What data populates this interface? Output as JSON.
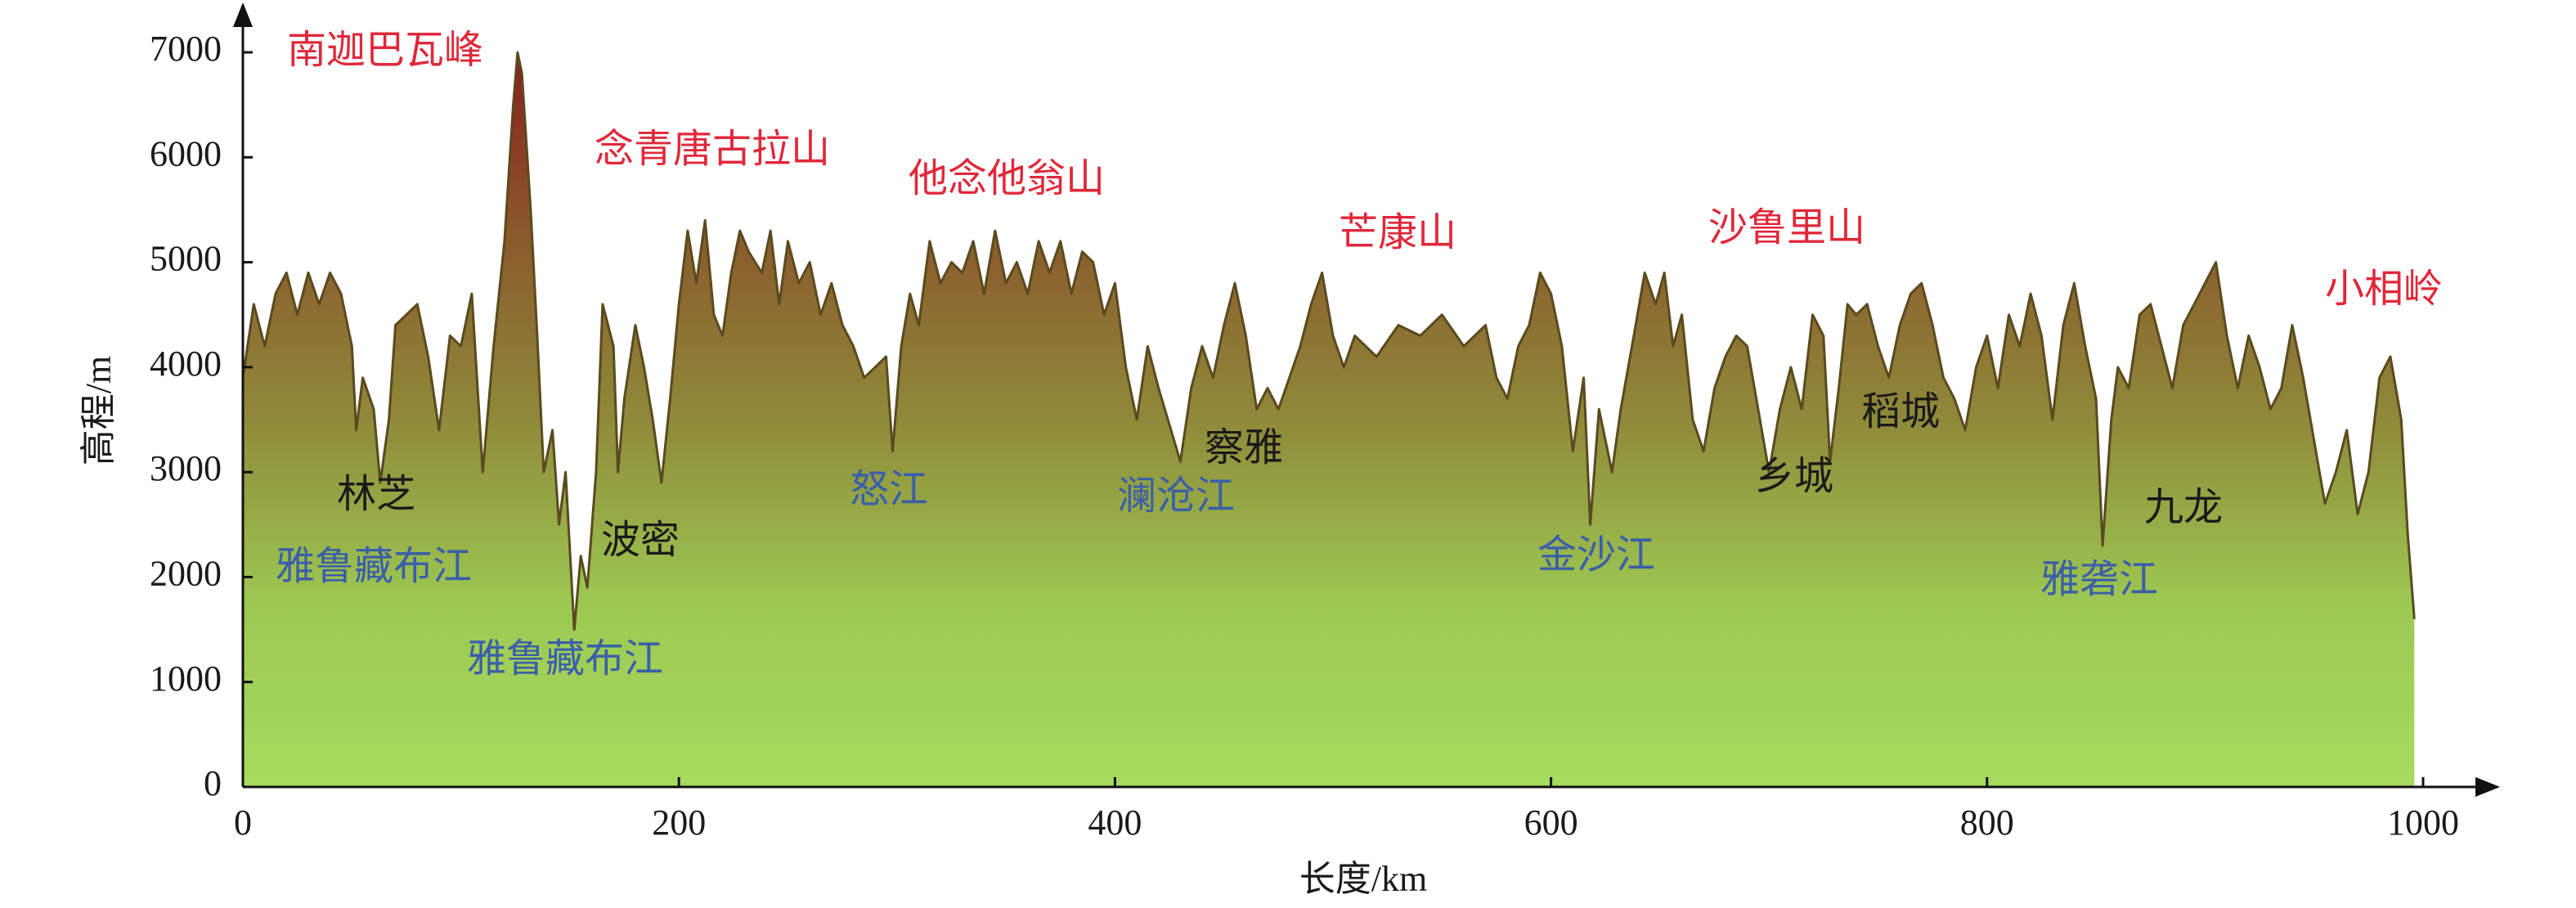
{
  "chart_data": {
    "type": "area",
    "xlabel": "长度/km",
    "ylabel": "高程/m",
    "xlim": [
      0,
      1000
    ],
    "ylim": [
      0,
      7000
    ],
    "xticks": [
      0,
      200,
      400,
      600,
      800,
      1000
    ],
    "yticks": [
      0,
      1000,
      2000,
      3000,
      4000,
      5000,
      6000,
      7000
    ],
    "line_color": "#5a4a1e",
    "gradient": [
      "#a6dc5e",
      "#9cc852",
      "#8f8a3a",
      "#8a5a2c",
      "#8b1e1e"
    ],
    "x": [
      0,
      5,
      10,
      15,
      20,
      25,
      30,
      35,
      40,
      45,
      50,
      52,
      55,
      60,
      63,
      67,
      70,
      75,
      80,
      85,
      90,
      95,
      100,
      105,
      110,
      115,
      120,
      124,
      126,
      128,
      132,
      135,
      138,
      142,
      145,
      148,
      152,
      155,
      158,
      162,
      165,
      170,
      172,
      175,
      180,
      184,
      188,
      192,
      196,
      200,
      204,
      208,
      212,
      216,
      220,
      224,
      228,
      232,
      238,
      242,
      246,
      250,
      255,
      260,
      265,
      270,
      275,
      280,
      285,
      290,
      295,
      298,
      302,
      306,
      310,
      315,
      320,
      325,
      330,
      335,
      340,
      345,
      350,
      355,
      360,
      365,
      370,
      375,
      380,
      385,
      390,
      395,
      400,
      405,
      410,
      415,
      420,
      430,
      435,
      440,
      445,
      450,
      455,
      460,
      465,
      470,
      475,
      480,
      485,
      490,
      495,
      500,
      505,
      510,
      520,
      530,
      540,
      550,
      560,
      570,
      575,
      580,
      585,
      590,
      595,
      600,
      605,
      610,
      615,
      618,
      622,
      628,
      632,
      638,
      643,
      648,
      652,
      656,
      660,
      665,
      670,
      675,
      680,
      685,
      690,
      695,
      700,
      705,
      710,
      715,
      720,
      725,
      728,
      732,
      736,
      740,
      745,
      750,
      755,
      760,
      765,
      770,
      775,
      780,
      785,
      790,
      795,
      800,
      805,
      810,
      815,
      820,
      825,
      830,
      835,
      840,
      845,
      850,
      853,
      857,
      860,
      865,
      870,
      875,
      880,
      885,
      890,
      895,
      900,
      905,
      910,
      915,
      920,
      925,
      930,
      935,
      940,
      945,
      950,
      955,
      960,
      965,
      970,
      975,
      980,
      985,
      990,
      993,
      996
    ],
    "values": [
      3900,
      4600,
      4200,
      4700,
      4900,
      4500,
      4900,
      4600,
      4900,
      4700,
      4200,
      3400,
      3900,
      3600,
      2900,
      3500,
      4400,
      4500,
      4600,
      4100,
      3400,
      4300,
      4200,
      4700,
      3000,
      4200,
      5200,
      6500,
      7000,
      6800,
      5500,
      4300,
      3000,
      3400,
      2500,
      3000,
      1500,
      2200,
      1900,
      3000,
      4600,
      4200,
      3000,
      3700,
      4400,
      4000,
      3500,
      2900,
      3700,
      4600,
      5300,
      4800,
      5400,
      4500,
      4300,
      4900,
      5300,
      5100,
      4900,
      5300,
      4600,
      5200,
      4800,
      5000,
      4500,
      4800,
      4400,
      4200,
      3900,
      4000,
      4100,
      3200,
      4200,
      4700,
      4400,
      5200,
      4800,
      5000,
      4900,
      5200,
      4700,
      5300,
      4800,
      5000,
      4700,
      5200,
      4900,
      5200,
      4700,
      5100,
      5000,
      4500,
      4800,
      4000,
      3500,
      4200,
      3800,
      3100,
      3800,
      4200,
      3900,
      4400,
      4800,
      4300,
      3600,
      3800,
      3600,
      3900,
      4200,
      4600,
      4900,
      4300,
      4000,
      4300,
      4100,
      4400,
      4300,
      4500,
      4200,
      4400,
      3900,
      3700,
      4200,
      4400,
      4900,
      4700,
      4200,
      3200,
      3900,
      2500,
      3600,
      3000,
      3600,
      4300,
      4900,
      4600,
      4900,
      4200,
      4500,
      3500,
      3200,
      3800,
      4100,
      4300,
      4200,
      3600,
      3000,
      3600,
      4000,
      3600,
      4500,
      4300,
      3100,
      3800,
      4600,
      4500,
      4600,
      4200,
      3900,
      4400,
      4700,
      4800,
      4400,
      3900,
      3700,
      3400,
      4000,
      4300,
      3800,
      4500,
      4200,
      4700,
      4300,
      3500,
      4400,
      4800,
      4200,
      3700,
      2300,
      3500,
      4000,
      3800,
      4500,
      4600,
      4200,
      3800,
      4400,
      4600,
      4800,
      5000,
      4300,
      3800,
      4300,
      4000,
      3600,
      3800,
      4400,
      3900,
      3300,
      2700,
      3000,
      3400,
      2600,
      3000,
      3900,
      4100,
      3500,
      2400,
      1600
    ],
    "annotations": [
      {
        "text": "南迦巴瓦峰",
        "color": "#e0283a"
      },
      {
        "text": "念青唐古拉山",
        "color": "#e0283a"
      },
      {
        "text": "他念他翁山",
        "color": "#e0283a"
      },
      {
        "text": "芒康山",
        "color": "#e0283a"
      },
      {
        "text": "沙鲁里山",
        "color": "#e0283a"
      },
      {
        "text": "小相岭",
        "color": "#e0283a"
      },
      {
        "text": "林芝",
        "color": "#1a1a1a"
      },
      {
        "text": "雅鲁藏布江",
        "color": "#3a5fa8"
      },
      {
        "text": "波密",
        "color": "#1a1a1a"
      },
      {
        "text": "雅鲁藏布江",
        "color": "#3a5fa8"
      },
      {
        "text": "怒江",
        "color": "#3a5fa8"
      },
      {
        "text": "澜沧江",
        "color": "#3a5fa8"
      },
      {
        "text": "察雅",
        "color": "#1a1a1a"
      },
      {
        "text": "金沙江",
        "color": "#3a5fa8"
      },
      {
        "text": "乡城",
        "color": "#1a1a1a"
      },
      {
        "text": "稻城",
        "color": "#1a1a1a"
      },
      {
        "text": "九龙",
        "color": "#1a1a1a"
      },
      {
        "text": "雅砻江",
        "color": "#3a5fa8"
      }
    ]
  }
}
